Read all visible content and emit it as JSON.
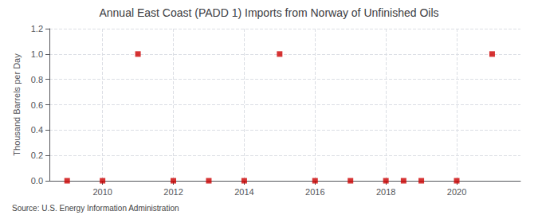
{
  "chart_data": {
    "type": "scatter",
    "title": "Annual East Coast (PADD 1) Imports from Norway of Unfinished Oils",
    "ylabel": "Thousand Barrels per Day",
    "source": "Source: U.S. Energy Information Administration",
    "x": [
      2009,
      2010,
      2011,
      2012,
      2013,
      2014,
      2015,
      2016,
      2017,
      2018,
      2018.5,
      2019,
      2020,
      2021
    ],
    "values": [
      0,
      0,
      1.0,
      0,
      0,
      0,
      1.0,
      0,
      0,
      0,
      0,
      0,
      0,
      1.0
    ],
    "color": "#cc0000",
    "marker": "square",
    "xlim": [
      2008.5,
      2021.8
    ],
    "xticks": [
      2010,
      2012,
      2014,
      2016,
      2018,
      2020
    ],
    "ylim": [
      0,
      1.2
    ],
    "yticks": [
      {
        "value": 0.0,
        "label": "0.0"
      },
      0.2,
      0.4,
      0.6,
      0.8,
      {
        "value": 1.0,
        "label": "1.0"
      },
      1.2
    ],
    "grid": true
  }
}
